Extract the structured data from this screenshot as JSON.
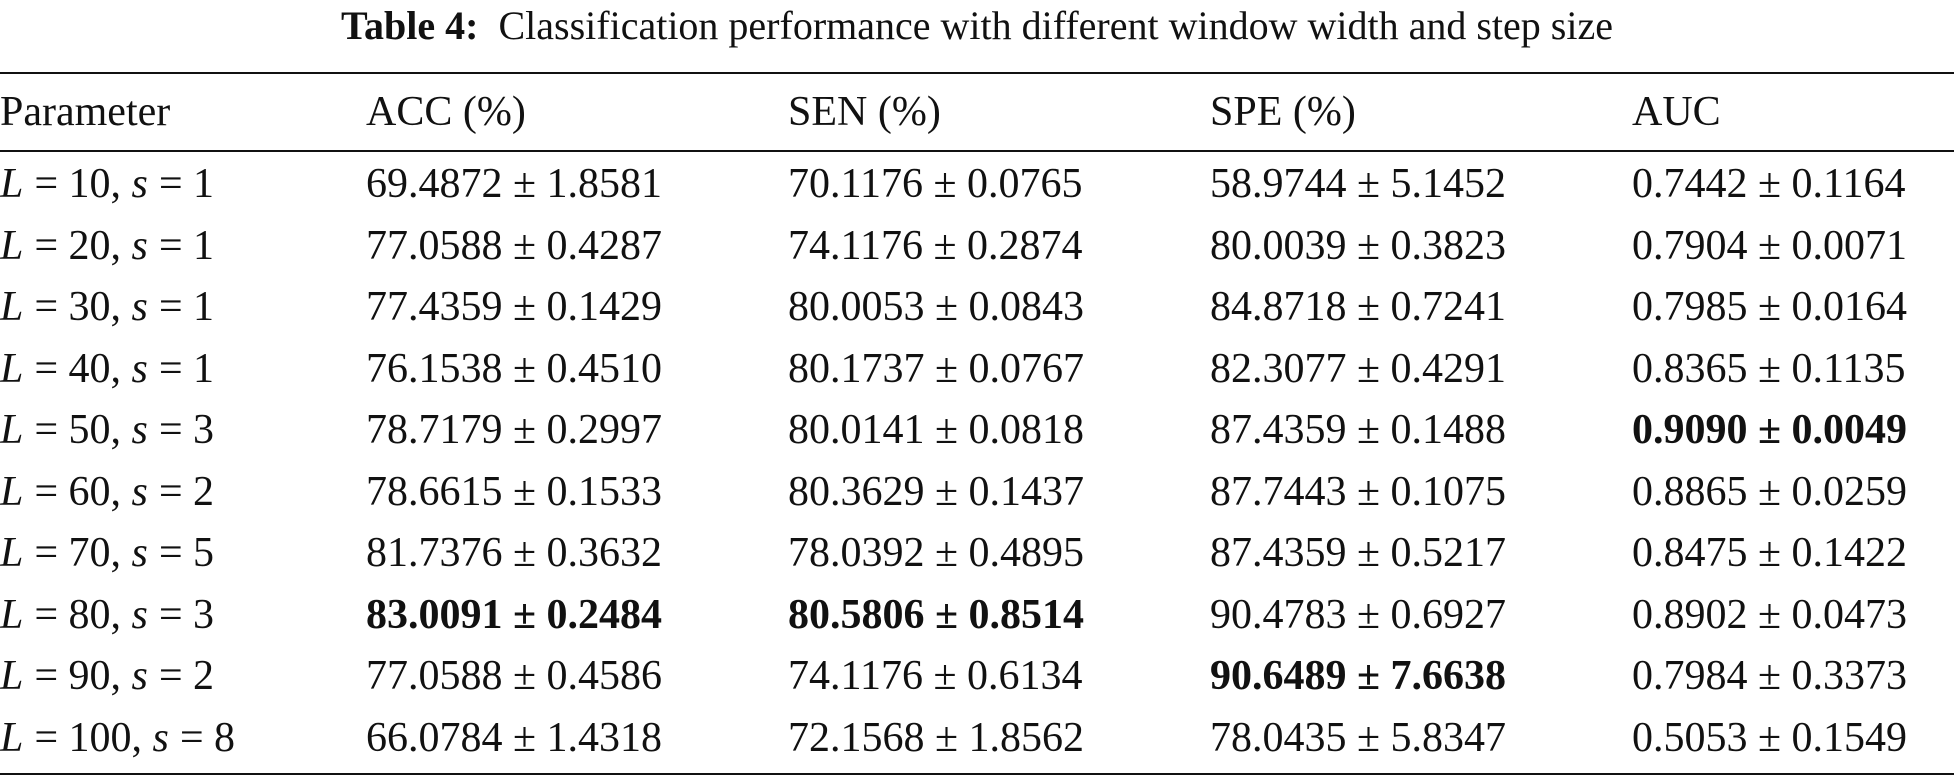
{
  "caption": {
    "label": "Table 4:",
    "text": "Classification performance with different window width and step size"
  },
  "headers": [
    "Parameter",
    "ACC (%)",
    "SEN (%)",
    "SPE (%)",
    "AUC"
  ],
  "rows": [
    {
      "L": "10",
      "s": "1",
      "acc": "69.4872 ± 1.8581",
      "sen": "70.1176 ± 0.0765",
      "spe": "58.9744 ± 5.1452",
      "auc": "0.7442 ± 0.1164",
      "bold": []
    },
    {
      "L": "20",
      "s": "1",
      "acc": "77.0588 ± 0.4287",
      "sen": "74.1176 ± 0.2874",
      "spe": "80.0039 ± 0.3823",
      "auc": "0.7904 ± 0.0071",
      "bold": []
    },
    {
      "L": "30",
      "s": "1",
      "acc": "77.4359 ± 0.1429",
      "sen": "80.0053 ± 0.0843",
      "spe": "84.8718 ± 0.7241",
      "auc": "0.7985 ± 0.0164",
      "bold": []
    },
    {
      "L": "40",
      "s": "1",
      "acc": "76.1538 ± 0.4510",
      "sen": "80.1737 ± 0.0767",
      "spe": "82.3077 ± 0.4291",
      "auc": "0.8365 ± 0.1135",
      "bold": []
    },
    {
      "L": "50",
      "s": "3",
      "acc": "78.7179 ± 0.2997",
      "sen": "80.0141 ± 0.0818",
      "spe": "87.4359 ± 0.1488",
      "auc": "0.9090 ± 0.0049",
      "bold": [
        "auc"
      ]
    },
    {
      "L": "60",
      "s": "2",
      "acc": "78.6615 ± 0.1533",
      "sen": "80.3629 ± 0.1437",
      "spe": "87.7443 ± 0.1075",
      "auc": "0.8865 ± 0.0259",
      "bold": []
    },
    {
      "L": "70",
      "s": "5",
      "acc": "81.7376 ± 0.3632",
      "sen": "78.0392 ± 0.4895",
      "spe": "87.4359 ± 0.5217",
      "auc": "0.8475 ± 0.1422",
      "bold": []
    },
    {
      "L": "80",
      "s": "3",
      "acc": "83.0091 ± 0.2484",
      "sen": "80.5806 ± 0.8514",
      "spe": "90.4783 ± 0.6927",
      "auc": "0.8902 ± 0.0473",
      "bold": [
        "acc",
        "sen"
      ]
    },
    {
      "L": "90",
      "s": "2",
      "acc": "77.0588 ± 0.4586",
      "sen": "74.1176 ± 0.6134",
      "spe": "90.6489 ± 7.6638",
      "auc": "0.7984 ± 0.3373",
      "bold": [
        "spe"
      ]
    },
    {
      "L": "100",
      "s": "8",
      "acc": "66.0784 ± 1.4318",
      "sen": "72.1568 ± 1.8562",
      "spe": "78.0435 ± 5.8347",
      "auc": "0.5053 ± 0.1549",
      "bold": []
    }
  ]
}
